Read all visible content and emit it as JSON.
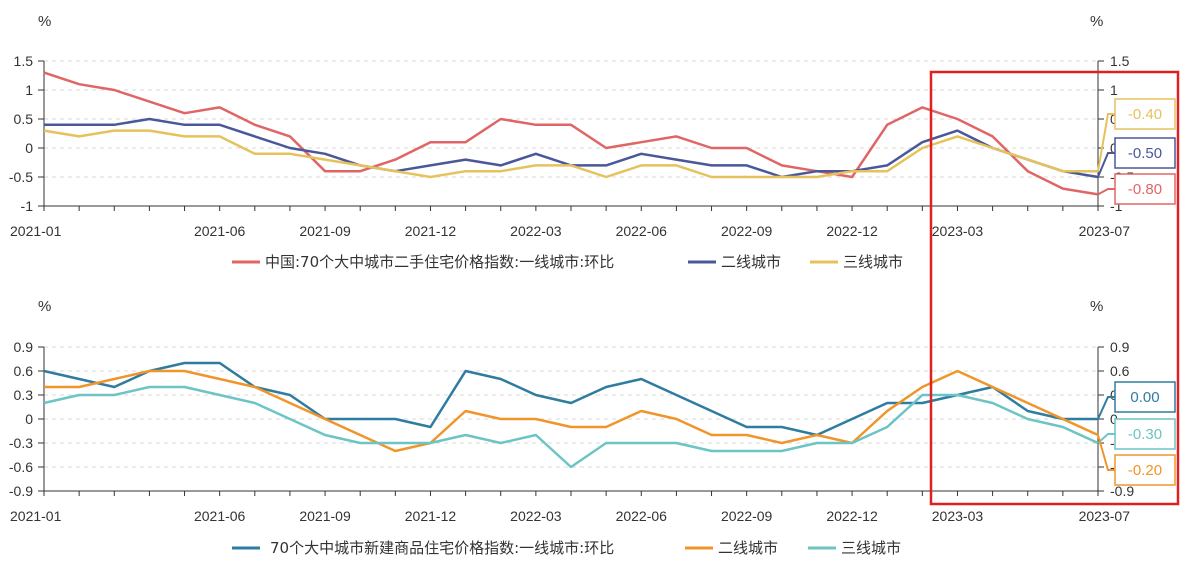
{
  "chart_data": [
    {
      "type": "line",
      "unit_left": "%",
      "unit_right": "%",
      "yticks": [
        "1.5",
        "1",
        "0.5",
        "0",
        "-0.5",
        "-1"
      ],
      "ylim": [
        -1,
        1.5
      ],
      "xlabels": [
        "2021-01",
        "2021-06",
        "2021-09",
        "2021-12",
        "2022-03",
        "2022-06",
        "2022-09",
        "2022-12",
        "2023-03",
        "2023-07"
      ],
      "x": [
        "2021-01",
        "2021-02",
        "2021-03",
        "2021-04",
        "2021-05",
        "2021-06",
        "2021-07",
        "2021-08",
        "2021-09",
        "2021-10",
        "2021-11",
        "2021-12",
        "2022-01",
        "2022-02",
        "2022-03",
        "2022-04",
        "2022-05",
        "2022-06",
        "2022-07",
        "2022-08",
        "2022-09",
        "2022-10",
        "2022-11",
        "2022-12",
        "2023-01",
        "2023-02",
        "2023-03",
        "2023-04",
        "2023-05",
        "2023-06",
        "2023-07"
      ],
      "series": [
        {
          "name": "中国:70个大中城市二手住宅价格指数:一线城市:环比",
          "color": "#e06666",
          "values": [
            1.3,
            1.1,
            1.0,
            0.8,
            0.6,
            0.7,
            0.4,
            0.2,
            -0.4,
            -0.4,
            -0.2,
            0.1,
            0.1,
            0.5,
            0.4,
            0.4,
            0.0,
            0.1,
            0.2,
            0.0,
            0.0,
            -0.3,
            -0.4,
            -0.5,
            0.4,
            0.7,
            0.5,
            0.2,
            -0.4,
            -0.7,
            -0.8
          ],
          "end_label": "-0.80"
        },
        {
          "name": "二线城市",
          "color": "#4a5899",
          "values": [
            0.4,
            0.4,
            0.4,
            0.5,
            0.4,
            0.4,
            0.2,
            0.0,
            -0.1,
            -0.3,
            -0.4,
            -0.3,
            -0.2,
            -0.3,
            -0.1,
            -0.3,
            -0.3,
            -0.1,
            -0.2,
            -0.3,
            -0.3,
            -0.5,
            -0.4,
            -0.4,
            -0.3,
            0.1,
            0.3,
            0.0,
            -0.2,
            -0.4,
            -0.5
          ],
          "end_label": "-0.50"
        },
        {
          "name": "三线城市",
          "color": "#e6c25c",
          "values": [
            0.3,
            0.2,
            0.3,
            0.3,
            0.2,
            0.2,
            -0.1,
            -0.1,
            -0.2,
            -0.3,
            -0.4,
            -0.5,
            -0.4,
            -0.4,
            -0.3,
            -0.3,
            -0.5,
            -0.3,
            -0.3,
            -0.5,
            -0.5,
            -0.5,
            -0.5,
            -0.4,
            -0.4,
            0.0,
            0.2,
            0.0,
            -0.2,
            -0.4,
            -0.4
          ],
          "end_label": "-0.40"
        }
      ],
      "legend_position": "bottom-center",
      "grid": true
    },
    {
      "type": "line",
      "unit_left": "%",
      "unit_right": "%",
      "yticks": [
        "0.9",
        "0.6",
        "0.3",
        "0",
        "-0.3",
        "-0.6",
        "-0.9"
      ],
      "ylim": [
        -0.9,
        0.9
      ],
      "xlabels": [
        "2021-01",
        "2021-06",
        "2021-09",
        "2021-12",
        "2022-03",
        "2022-06",
        "2022-09",
        "2022-12",
        "2023-03",
        "2023-07"
      ],
      "x": [
        "2021-01",
        "2021-02",
        "2021-03",
        "2021-04",
        "2021-05",
        "2021-06",
        "2021-07",
        "2021-08",
        "2021-09",
        "2021-10",
        "2021-11",
        "2021-12",
        "2022-01",
        "2022-02",
        "2022-03",
        "2022-04",
        "2022-05",
        "2022-06",
        "2022-07",
        "2022-08",
        "2022-09",
        "2022-10",
        "2022-11",
        "2022-12",
        "2023-01",
        "2023-02",
        "2023-03",
        "2023-04",
        "2023-05",
        "2023-06",
        "2023-07"
      ],
      "series": [
        {
          "name": "70个大中城市新建商品住宅价格指数:一线城市:环比",
          "color": "#2e7ca0",
          "values": [
            0.6,
            0.5,
            0.4,
            0.6,
            0.7,
            0.7,
            0.4,
            0.3,
            0.0,
            0.0,
            0.0,
            -0.1,
            0.6,
            0.5,
            0.3,
            0.2,
            0.4,
            0.5,
            0.3,
            0.1,
            -0.1,
            -0.1,
            -0.2,
            0.0,
            0.2,
            0.2,
            0.3,
            0.4,
            0.1,
            0.0,
            0.0
          ],
          "end_label": "0.00"
        },
        {
          "name": "二线城市",
          "color": "#f0952a",
          "values": [
            0.4,
            0.4,
            0.5,
            0.6,
            0.6,
            0.5,
            0.4,
            0.2,
            0.0,
            -0.2,
            -0.4,
            -0.3,
            0.1,
            0.0,
            0.0,
            -0.1,
            -0.1,
            0.1,
            0.0,
            -0.2,
            -0.2,
            -0.3,
            -0.2,
            -0.3,
            0.1,
            0.4,
            0.6,
            0.4,
            0.2,
            0.0,
            -0.2
          ],
          "end_label": "-0.20"
        },
        {
          "name": "三线城市",
          "color": "#6cc4c4",
          "values": [
            0.2,
            0.3,
            0.3,
            0.4,
            0.4,
            0.3,
            0.2,
            0.0,
            -0.2,
            -0.3,
            -0.3,
            -0.3,
            -0.2,
            -0.3,
            -0.2,
            -0.6,
            -0.3,
            -0.3,
            -0.3,
            -0.4,
            -0.4,
            -0.4,
            -0.3,
            -0.3,
            -0.1,
            0.3,
            0.3,
            0.2,
            0.0,
            -0.1,
            -0.3
          ],
          "end_label": "-0.30"
        }
      ],
      "legend_position": "bottom-center",
      "grid": true
    }
  ],
  "highlight_box_color": "#e02020"
}
